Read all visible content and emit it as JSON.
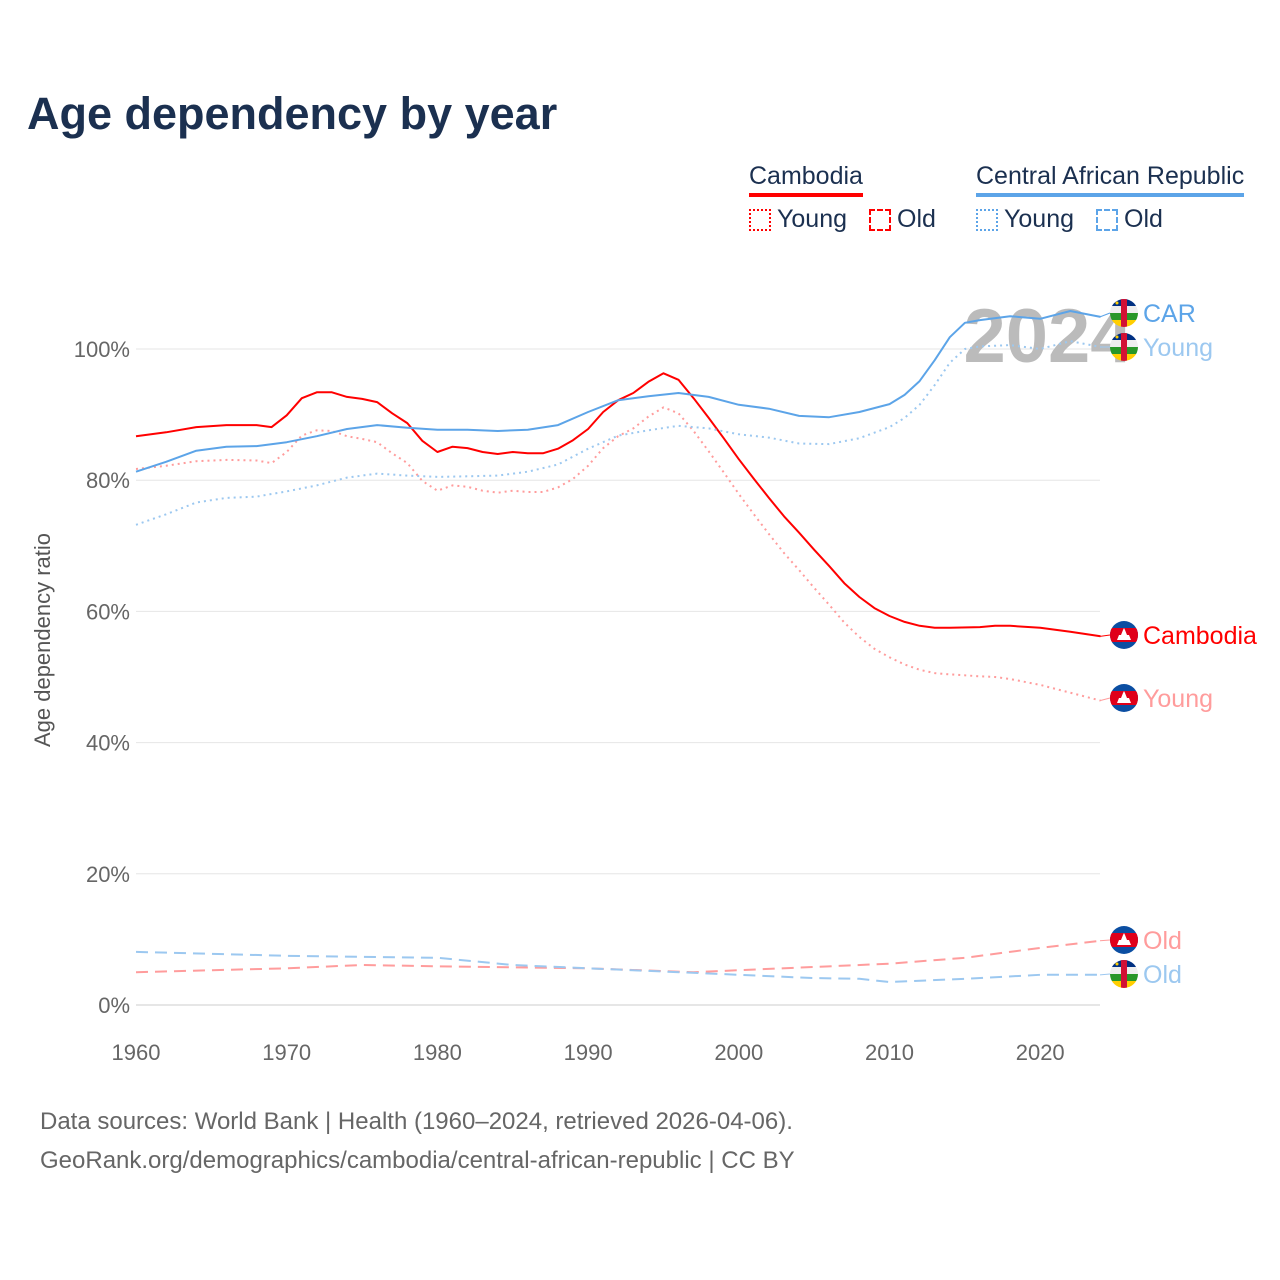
{
  "title": "Age dependency by year",
  "legend": {
    "groups": [
      {
        "name": "Cambodia",
        "color": "#ff0000",
        "items": [
          "Young",
          "Old"
        ]
      },
      {
        "name": "Central African Republic",
        "color": "#5ca4e8",
        "items": [
          "Young",
          "Old"
        ]
      }
    ]
  },
  "year_watermark": "2024",
  "source_line1": "Data sources: World Bank | Health (1960–2024, retrieved 2026-04-06).",
  "source_line2": "GeoRank.org/demographics/cambodia/central-african-republic | CC BY",
  "chart_data": {
    "type": "line",
    "title": "Age dependency by year",
    "xlabel": "",
    "ylabel": "Age dependency ratio",
    "xlim": [
      1960,
      2024
    ],
    "ylim": [
      0,
      110
    ],
    "x_ticks": [
      "1960",
      "1970",
      "1980",
      "1990",
      "2000",
      "2010",
      "2020"
    ],
    "y_ticks": [
      "0%",
      "20%",
      "40%",
      "60%",
      "80%",
      "100%"
    ],
    "grid": true,
    "series": [
      {
        "name": "Cambodia",
        "end_label": "Cambodia",
        "flag": "cambodia",
        "color": "#ff0000",
        "style": "solid",
        "x": [
          1960,
          1962,
          1964,
          1966,
          1968,
          1969,
          1970,
          1971,
          1972,
          1973,
          1974,
          1975,
          1976,
          1977,
          1978,
          1979,
          1980,
          1981,
          1982,
          1983,
          1984,
          1985,
          1986,
          1987,
          1988,
          1989,
          1990,
          1991,
          1992,
          1993,
          1994,
          1995,
          1996,
          1997,
          1998,
          1999,
          2000,
          2001,
          2002,
          2003,
          2004,
          2005,
          2006,
          2007,
          2008,
          2009,
          2010,
          2011,
          2012,
          2013,
          2014,
          2016,
          2017,
          2018,
          2020,
          2022,
          2024
        ],
        "y": [
          86.7,
          87.3,
          88.1,
          88.4,
          88.4,
          88.1,
          89.9,
          92.5,
          93.4,
          93.4,
          92.7,
          92.4,
          91.9,
          90.2,
          88.7,
          86.0,
          84.3,
          85.1,
          84.9,
          84.3,
          84.0,
          84.3,
          84.1,
          84.1,
          84.8,
          86.1,
          87.8,
          90.4,
          92.2,
          93.3,
          95.0,
          96.3,
          95.3,
          92.5,
          89.5,
          86.4,
          83.2,
          80.2,
          77.3,
          74.5,
          72.0,
          69.4,
          66.9,
          64.3,
          62.2,
          60.5,
          59.3,
          58.4,
          57.8,
          57.5,
          57.5,
          57.6,
          57.8,
          57.8,
          57.5,
          56.9,
          56.2
        ]
      },
      {
        "name": "Cambodia Young",
        "end_label": "Young",
        "flag": "cambodia",
        "color": "#ff9c9c",
        "style": "dotted",
        "x": [
          1960,
          1962,
          1964,
          1966,
          1968,
          1969,
          1970,
          1971,
          1972,
          1973,
          1974,
          1975,
          1976,
          1977,
          1978,
          1979,
          1980,
          1981,
          1982,
          1983,
          1984,
          1985,
          1986,
          1987,
          1988,
          1989,
          1990,
          1991,
          1992,
          1993,
          1994,
          1995,
          1996,
          1997,
          1998,
          1999,
          2000,
          2001,
          2002,
          2003,
          2004,
          2005,
          2006,
          2007,
          2008,
          2009,
          2010,
          2011,
          2012,
          2013,
          2014,
          2016,
          2017,
          2018,
          2020,
          2022,
          2024
        ],
        "y": [
          81.7,
          82.2,
          82.9,
          83.1,
          83.0,
          82.6,
          84.3,
          86.8,
          87.6,
          87.5,
          86.7,
          86.3,
          85.8,
          84.1,
          82.6,
          79.9,
          78.4,
          79.2,
          79.0,
          78.4,
          78.1,
          78.4,
          78.2,
          78.2,
          78.9,
          80.2,
          82.2,
          84.9,
          86.7,
          87.9,
          89.7,
          91.1,
          90.2,
          87.5,
          84.4,
          81.2,
          77.9,
          74.8,
          71.8,
          68.9,
          66.3,
          63.6,
          61.0,
          58.3,
          56.1,
          54.3,
          53.0,
          51.9,
          51.1,
          50.6,
          50.4,
          50.1,
          50.0,
          49.7,
          48.8,
          47.6,
          46.4
        ]
      },
      {
        "name": "Cambodia Old",
        "end_label": "Old",
        "flag": "cambodia",
        "color": "#ff9c9c",
        "style": "dashed",
        "x": [
          1960,
          1970,
          1975,
          1980,
          1990,
          1997,
          2000,
          2010,
          2015,
          2020,
          2024
        ],
        "y": [
          5.0,
          5.6,
          6.1,
          5.9,
          5.6,
          5.0,
          5.3,
          6.3,
          7.2,
          8.7,
          9.8
        ]
      },
      {
        "name": "Central African Republic",
        "end_label": "CAR",
        "flag": "car",
        "color": "#5ca4e8",
        "style": "solid",
        "x": [
          1960,
          1962,
          1964,
          1966,
          1968,
          1970,
          1972,
          1974,
          1976,
          1978,
          1980,
          1982,
          1984,
          1986,
          1988,
          1990,
          1992,
          1994,
          1996,
          1998,
          2000,
          2002,
          2004,
          2006,
          2008,
          2010,
          2011,
          2012,
          2013,
          2014,
          2015,
          2016,
          2018,
          2020,
          2022,
          2024
        ],
        "y": [
          81.3,
          82.8,
          84.5,
          85.1,
          85.2,
          85.8,
          86.7,
          87.8,
          88.4,
          88.0,
          87.7,
          87.7,
          87.5,
          87.7,
          88.4,
          90.4,
          92.2,
          92.8,
          93.3,
          92.7,
          91.5,
          90.9,
          89.8,
          89.6,
          90.4,
          91.6,
          93.0,
          95.1,
          98.3,
          101.8,
          104.0,
          104.4,
          105.0,
          104.6,
          105.8,
          104.9
        ]
      },
      {
        "name": "Central African Republic Young",
        "end_label": "Young",
        "flag": "car",
        "color": "#9cc8f0",
        "style": "dotted",
        "x": [
          1960,
          1962,
          1964,
          1966,
          1968,
          1970,
          1972,
          1974,
          1976,
          1978,
          1980,
          1982,
          1984,
          1986,
          1988,
          1990,
          1992,
          1994,
          1996,
          1998,
          2000,
          2002,
          2004,
          2006,
          2008,
          2010,
          2011,
          2012,
          2013,
          2014,
          2015,
          2016,
          2018,
          2020,
          2022,
          2024
        ],
        "y": [
          73.2,
          74.8,
          76.6,
          77.3,
          77.5,
          78.3,
          79.2,
          80.4,
          81.0,
          80.7,
          80.5,
          80.6,
          80.7,
          81.3,
          82.4,
          84.8,
          86.8,
          87.6,
          88.3,
          87.9,
          87.0,
          86.5,
          85.6,
          85.5,
          86.4,
          88.1,
          89.5,
          91.5,
          94.5,
          97.9,
          100.0,
          100.4,
          100.6,
          100.0,
          101.2,
          100.3
        ]
      },
      {
        "name": "Central African Republic Old",
        "end_label": "Old",
        "flag": "car",
        "color": "#9cc8f0",
        "style": "dashed",
        "x": [
          1960,
          1965,
          1970,
          1980,
          1985,
          1990,
          2000,
          2005,
          2008,
          2010,
          2015,
          2020,
          2024
        ],
        "y": [
          8.1,
          7.8,
          7.5,
          7.2,
          6.1,
          5.6,
          4.6,
          4.1,
          4.0,
          3.5,
          4.0,
          4.6,
          4.6
        ]
      }
    ]
  }
}
